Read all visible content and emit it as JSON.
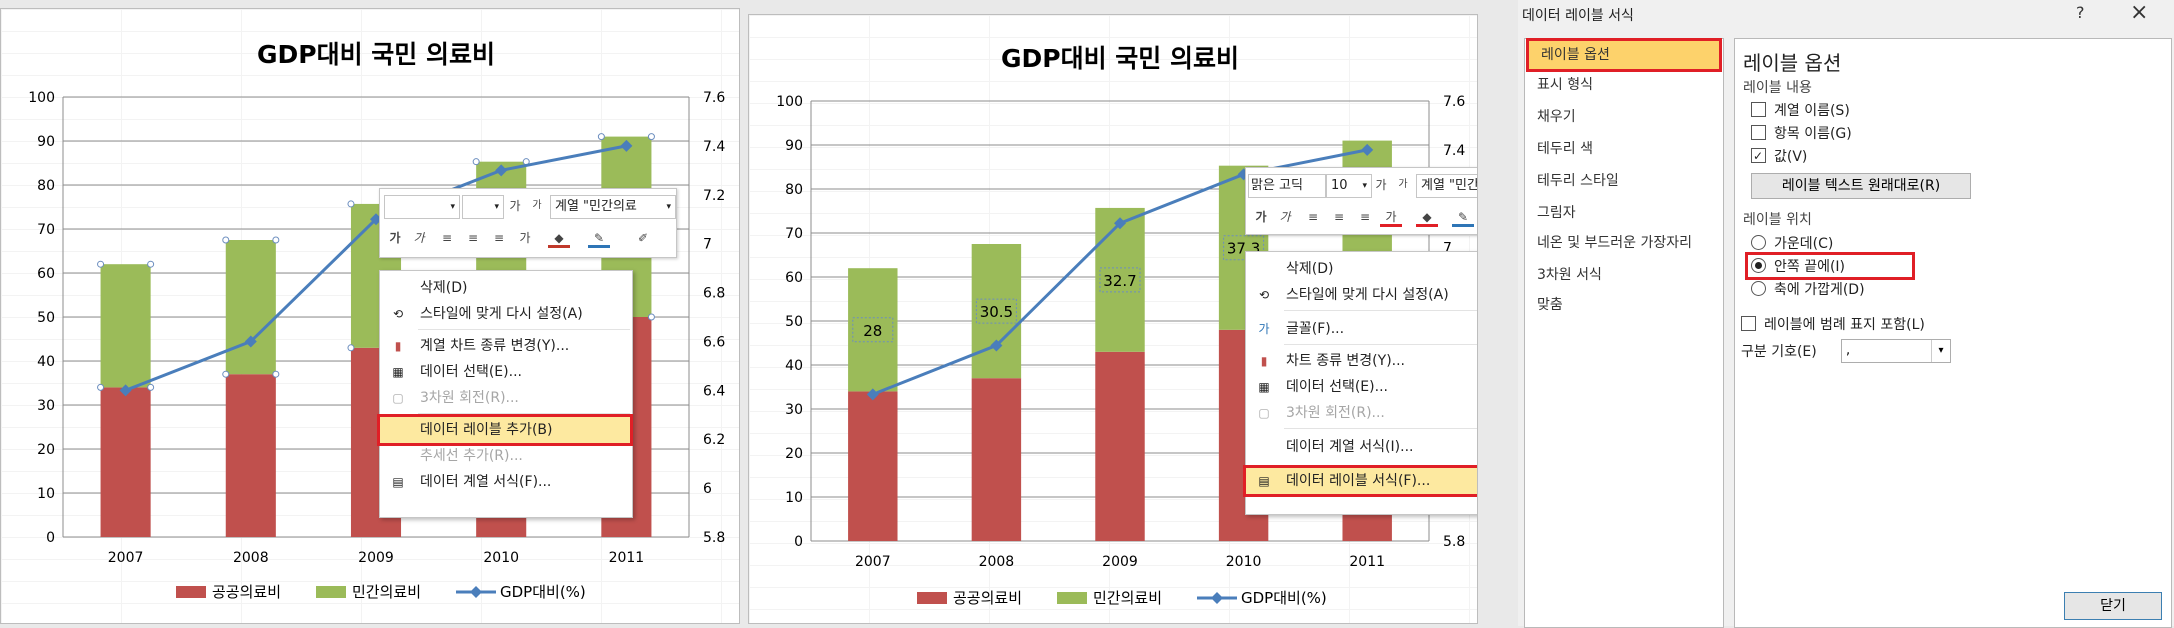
{
  "chart": {
    "title": "GDP대비 국민 의료비",
    "categories": [
      "2007",
      "2008",
      "2009",
      "2010",
      "2011"
    ],
    "y_left_ticks": [
      "0",
      "10",
      "20",
      "30",
      "40",
      "50",
      "60",
      "70",
      "80",
      "90",
      "100"
    ],
    "y_right_ticks": [
      "5.8",
      "6",
      "6.2",
      "6.4",
      "6.6",
      "6.8",
      "7",
      "7.2",
      "7.4",
      "7.6"
    ],
    "legend": [
      "공공의료비",
      "민간의료비",
      "GDP대비(%)"
    ],
    "colors": {
      "public": "#c0504d",
      "private": "#9bbb59",
      "line": "#4a7ebb"
    }
  },
  "chart_data": [
    {
      "type": "bar",
      "title": "GDP대비 국민 의료비",
      "stacked": true,
      "categories": [
        "2007",
        "2008",
        "2009",
        "2010",
        "2011"
      ],
      "series": [
        {
          "name": "공공의료비",
          "values": [
            34,
            37,
            43,
            48,
            50
          ]
        },
        {
          "name": "민간의료비",
          "values": [
            28,
            30.5,
            32.7,
            37.3,
            41
          ]
        },
        {
          "name": "GDP대비(%)",
          "type": "line",
          "axis": "secondary",
          "values": [
            6.4,
            6.6,
            7.1,
            7.3,
            7.4
          ]
        }
      ],
      "ylim": [
        0,
        100
      ],
      "y2lim": [
        5.8,
        7.6
      ],
      "legend_position": "bottom"
    },
    {
      "type": "bar",
      "title": "GDP대비 국민 의료비",
      "stacked": true,
      "categories": [
        "2007",
        "2008",
        "2009",
        "2010",
        "2011"
      ],
      "series": [
        {
          "name": "공공의료비",
          "values": [
            34,
            37,
            43,
            48,
            50
          ]
        },
        {
          "name": "민간의료비",
          "values": [
            28,
            30.5,
            32.7,
            37.3,
            41
          ]
        },
        {
          "name": "GDP대비(%)",
          "type": "line",
          "axis": "secondary",
          "values": [
            6.4,
            6.6,
            7.1,
            7.3,
            7.4
          ]
        }
      ],
      "data_labels": [
        "28",
        "30.5",
        "32.7",
        "37.3"
      ],
      "ylim": [
        0,
        100
      ],
      "y2lim": [
        5.8,
        7.6
      ],
      "legend_position": "bottom"
    }
  ],
  "menu1": {
    "series_field": "계열 \"민간의료",
    "items": [
      "삭제(D)",
      "스타일에 맞게 다시 설정(A)",
      "계열 차트 종류 변경(Y)...",
      "데이터 선택(E)...",
      "3차원 회전(R)...",
      "데이터 레이블 추가(B)",
      "추세선 추가(R)...",
      "데이터 계열 서식(F)..."
    ]
  },
  "menu2": {
    "font_field": "맑은 고딕",
    "size_field": "10",
    "series_field": "계열 \"민간의",
    "items": [
      "삭제(D)",
      "스타일에 맞게 다시 설정(A)",
      "글꼴(F)...",
      "차트 종류 변경(Y)...",
      "데이터 선택(E)...",
      "3차원 회전(R)...",
      "데이터 계열 서식(I)...",
      "데이터 레이블 서식(F)..."
    ]
  },
  "dialog": {
    "title": "데이터 레이블 서식",
    "help": "?",
    "close_x": "×",
    "nav": [
      "레이블 옵션",
      "표시 형식",
      "채우기",
      "테두리 색",
      "테두리 스타일",
      "그림자",
      "네온 및 부드러운 가장자리",
      "3차원 서식",
      "맞춤"
    ],
    "panel_title": "레이블 옵션",
    "content_heading": "레이블 내용",
    "checkboxes": [
      {
        "label": "계열 이름(S)",
        "checked": false
      },
      {
        "label": "항목 이름(G)",
        "checked": false
      },
      {
        "label": "값(V)",
        "checked": true
      }
    ],
    "reset_button": "레이블 텍스트 원래대로(R)",
    "position_heading": "레이블 위치",
    "radios": [
      {
        "label": "가운데(C)",
        "checked": false
      },
      {
        "label": "안쪽 끝에(I)",
        "checked": true
      },
      {
        "label": "축에 가깝게(D)",
        "checked": false
      }
    ],
    "legend_key": "레이블에 범례 표지 포함(L)",
    "separator_label": "구분 기호(E)",
    "separator_value": ",",
    "close_button": "닫기"
  }
}
